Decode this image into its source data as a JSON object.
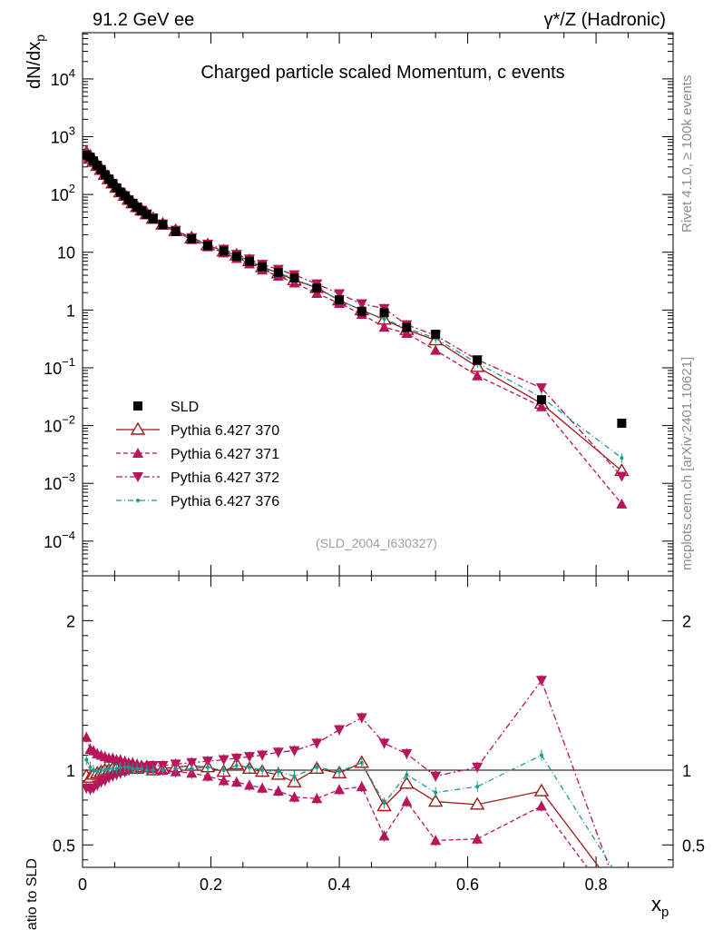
{
  "chart_data": {
    "type": "line",
    "header_left": "91.2 GeV ee",
    "header_right": "γ*/Z (Hadronic)",
    "title": "Charged particle scaled Momentum, c events",
    "analysis_id": "(SLD_2004_I630327)",
    "side_top": "Rivet 4.1.0, ≥ 100k events",
    "side_bottom": "mcplots.cern.ch [arXiv:2401.10621]",
    "ylabel_main": "dN/dx",
    "ylabel_main_sub": "p",
    "ylabel_ratio": "Ratio to SLD",
    "xlabel": "x",
    "xlabel_sub": "p",
    "xlim": [
      0,
      0.92
    ],
    "ylim_main_log10": [
      -4.6,
      4.8
    ],
    "ylim_ratio": [
      0.35,
      2.3
    ],
    "x_ticks": [
      {
        "v": 0,
        "label": "0"
      },
      {
        "v": 0.2,
        "label": "0.2"
      },
      {
        "v": 0.4,
        "label": "0.4"
      },
      {
        "v": 0.6,
        "label": "0.6"
      },
      {
        "v": 0.8,
        "label": "0.8"
      }
    ],
    "y_ticks_main": [
      {
        "p": 4,
        "base": "10",
        "exp": "4"
      },
      {
        "p": 3,
        "base": "10",
        "exp": "3"
      },
      {
        "p": 2,
        "base": "10",
        "exp": "2"
      },
      {
        "p": 1,
        "base": "10",
        "exp": ""
      },
      {
        "p": 0,
        "base": "1",
        "exp": ""
      },
      {
        "p": -1,
        "base": "10",
        "exp": "−1"
      },
      {
        "p": -2,
        "base": "10",
        "exp": "−2"
      },
      {
        "p": -3,
        "base": "10",
        "exp": "−3"
      },
      {
        "p": -4,
        "base": "10",
        "exp": "−4"
      }
    ],
    "y_ticks_ratio": [
      {
        "v": 0.5,
        "label": "0.5"
      },
      {
        "v": 1,
        "label": "1"
      },
      {
        "v": 2,
        "label": "2"
      }
    ],
    "x": [
      0.006,
      0.012,
      0.017,
      0.023,
      0.029,
      0.035,
      0.041,
      0.047,
      0.053,
      0.059,
      0.066,
      0.072,
      0.078,
      0.085,
      0.092,
      0.1,
      0.11,
      0.125,
      0.145,
      0.17,
      0.195,
      0.22,
      0.24,
      0.26,
      0.28,
      0.305,
      0.33,
      0.365,
      0.4,
      0.435,
      0.47,
      0.505,
      0.55,
      0.615,
      0.715,
      0.84
    ],
    "data_value": [
      480,
      440,
      380,
      320,
      270,
      220,
      185,
      155,
      130,
      110,
      95,
      80,
      70,
      60,
      52,
      45,
      38,
      30,
      23,
      17,
      13,
      10.5,
      8.5,
      7,
      5.6,
      4.5,
      3.6,
      2.4,
      1.5,
      0.95,
      0.9,
      0.5,
      0.38,
      0.135,
      0.028,
      0.011
    ],
    "series": [
      {
        "name": "SLD",
        "kind": "data",
        "color": "#000000",
        "marker": "square"
      },
      {
        "name": "Pythia 6.427 370",
        "kind": "mc",
        "color": "#9e1a1a",
        "marker": "tri-up-open",
        "dash": "",
        "ratio": [
          0.96,
          0.95,
          0.97,
          0.98,
          0.99,
          1.0,
          1.0,
          1.01,
          1.01,
          1.0,
          1.01,
          1.02,
          1.01,
          1.01,
          1.02,
          1.02,
          1.0,
          1.01,
          1.02,
          1.03,
          1.02,
          0.99,
          1.04,
          1.01,
          0.99,
          0.97,
          0.92,
          1.01,
          0.98,
          1.05,
          0.76,
          0.91,
          0.79,
          0.77,
          0.86,
          0.15
        ]
      },
      {
        "name": "Pythia 6.427 371",
        "kind": "mc",
        "color": "#b8145a",
        "marker": "tri-up",
        "dash": "5,3",
        "ratio": [
          1.22,
          1.14,
          1.13,
          1.11,
          1.1,
          1.09,
          1.08,
          1.08,
          1.07,
          1.07,
          1.06,
          1.05,
          1.05,
          1.04,
          1.03,
          1.02,
          1.01,
          1.0,
          0.99,
          0.98,
          0.96,
          0.93,
          0.92,
          0.9,
          0.88,
          0.86,
          0.82,
          0.81,
          0.87,
          0.89,
          0.56,
          0.79,
          0.53,
          0.54,
          0.76,
          0.04
        ]
      },
      {
        "name": "Pythia 6.427 372",
        "kind": "mc",
        "color": "#b8145a",
        "marker": "tri-down",
        "dash": "7,3,2,3",
        "ratio": [
          0.88,
          0.87,
          0.88,
          0.9,
          0.92,
          0.93,
          0.95,
          0.96,
          0.97,
          0.98,
          0.99,
          1.0,
          1.01,
          1.01,
          1.02,
          1.02,
          1.03,
          1.03,
          1.04,
          1.05,
          1.06,
          1.07,
          1.08,
          1.09,
          1.1,
          1.12,
          1.13,
          1.18,
          1.27,
          1.35,
          1.18,
          1.11,
          0.96,
          1.02,
          1.6,
          0.12
        ]
      },
      {
        "name": "Pythia 6.427 376",
        "kind": "mc",
        "color": "#179c8e",
        "marker": "dot",
        "dash": "6,3,1,3",
        "ratio": [
          1.07,
          1.02,
          1.0,
          0.99,
          1.0,
          1.0,
          1.01,
          1.01,
          1.01,
          1.02,
          1.02,
          1.02,
          1.01,
          1.01,
          1.01,
          1.0,
          1.0,
          1.0,
          1.01,
          1.01,
          1.02,
          1.0,
          1.03,
          1.02,
          1.0,
          0.99,
          0.96,
          1.02,
          0.99,
          1.05,
          0.78,
          0.97,
          0.85,
          0.89,
          1.1,
          0.25
        ]
      }
    ]
  }
}
